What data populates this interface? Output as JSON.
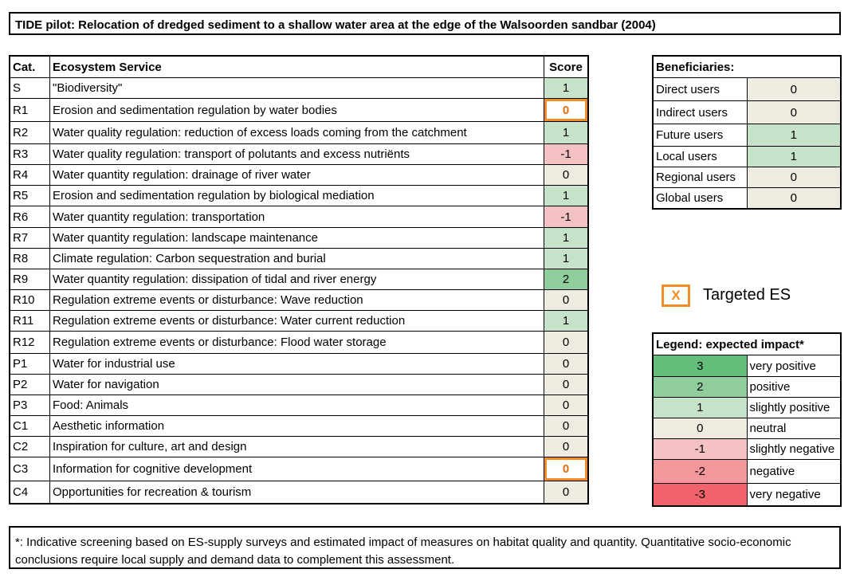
{
  "title": "TIDE pilot: Relocation of dredged sediment to a shallow water area at the edge of the Walsoorden sandbar (2004)",
  "colors": {
    "very_positive": "#63be7b",
    "positive": "#8fce9c",
    "slightly_positive": "#c6e3c9",
    "neutral": "#eeece1",
    "slightly_negative": "#f4c2c2",
    "negative": "#f4979a",
    "very_negative": "#f0636b",
    "targeted": "#f28c28"
  },
  "es_table": {
    "headers": {
      "cat": "Cat.",
      "service": "Ecosystem Service",
      "score": "Score"
    },
    "rows": [
      {
        "cat": "S",
        "service": "\"Biodiversity\"",
        "score": "1",
        "targeted": false
      },
      {
        "cat": "R1",
        "service": "Erosion and sedimentation regulation by water bodies",
        "score": "0",
        "targeted": true
      },
      {
        "cat": "R2",
        "service": "Water quality regulation: reduction of excess loads coming from the catchment",
        "score": "1",
        "targeted": false
      },
      {
        "cat": "R3",
        "service": "Water quality regulation: transport of polutants and excess nutriënts",
        "score": "-1",
        "targeted": false
      },
      {
        "cat": "R4",
        "service": "Water quantity regulation: drainage of river water",
        "score": "0",
        "targeted": false
      },
      {
        "cat": "R5",
        "service": "Erosion and sedimentation regulation by biological mediation",
        "score": "1",
        "targeted": false
      },
      {
        "cat": "R6",
        "service": "Water quantity regulation: transportation",
        "score": "-1",
        "targeted": false
      },
      {
        "cat": "R7",
        "service": "Water quantity regulation: landscape maintenance",
        "score": "1",
        "targeted": false
      },
      {
        "cat": "R8",
        "service": "Climate regulation: Carbon sequestration and burial",
        "score": "1",
        "targeted": false
      },
      {
        "cat": "R9",
        "service": "Water quantity regulation: dissipation of tidal and river energy",
        "score": "2",
        "targeted": false
      },
      {
        "cat": "R10",
        "service": "Regulation extreme events or disturbance: Wave reduction",
        "score": "0",
        "targeted": false
      },
      {
        "cat": "R11",
        "service": "Regulation extreme events or disturbance: Water current reduction",
        "score": "1",
        "targeted": false
      },
      {
        "cat": "R12",
        "service": "Regulation extreme events or disturbance: Flood water storage",
        "score": "0",
        "targeted": false
      },
      {
        "cat": "P1",
        "service": "Water for industrial use",
        "score": "0",
        "targeted": false
      },
      {
        "cat": "P2",
        "service": "Water for navigation",
        "score": "0",
        "targeted": false
      },
      {
        "cat": "P3",
        "service": "Food: Animals",
        "score": "0",
        "targeted": false
      },
      {
        "cat": "C1",
        "service": "Aesthetic information",
        "score": "0",
        "targeted": false
      },
      {
        "cat": "C2",
        "service": "Inspiration for culture, art and design",
        "score": "0",
        "targeted": false
      },
      {
        "cat": "C3",
        "service": "Information for cognitive development",
        "score": "0",
        "targeted": true
      },
      {
        "cat": "C4",
        "service": "Opportunities for recreation & tourism",
        "score": "0",
        "targeted": false
      }
    ]
  },
  "beneficiaries": {
    "header": "Beneficiaries:",
    "rows": [
      {
        "name": "Direct users",
        "score": "0"
      },
      {
        "name": "Indirect users",
        "score": "0"
      },
      {
        "name": "Future users",
        "score": "1"
      },
      {
        "name": "Local users",
        "score": "1"
      },
      {
        "name": "Regional users",
        "score": "0"
      },
      {
        "name": "Global users",
        "score": "0"
      }
    ]
  },
  "targeted_key": {
    "symbol": "X",
    "label": "Targeted ES"
  },
  "legend": {
    "header": "Legend: expected  impact*",
    "rows": [
      {
        "value": "3",
        "label": "very positive"
      },
      {
        "value": "2",
        "label": "positive"
      },
      {
        "value": "1",
        "label": "slightly positive"
      },
      {
        "value": "0",
        "label": "neutral"
      },
      {
        "value": "-1",
        "label": "slightly negative"
      },
      {
        "value": "-2",
        "label": "negative"
      },
      {
        "value": "-3",
        "label": "very negative"
      }
    ]
  },
  "footnote": "*: Indicative screening based on ES-supply surveys and estimated impact of measures on habitat quality and quantity. Quantitative socio-economic conclusions require local supply and demand data to complement this assessment."
}
